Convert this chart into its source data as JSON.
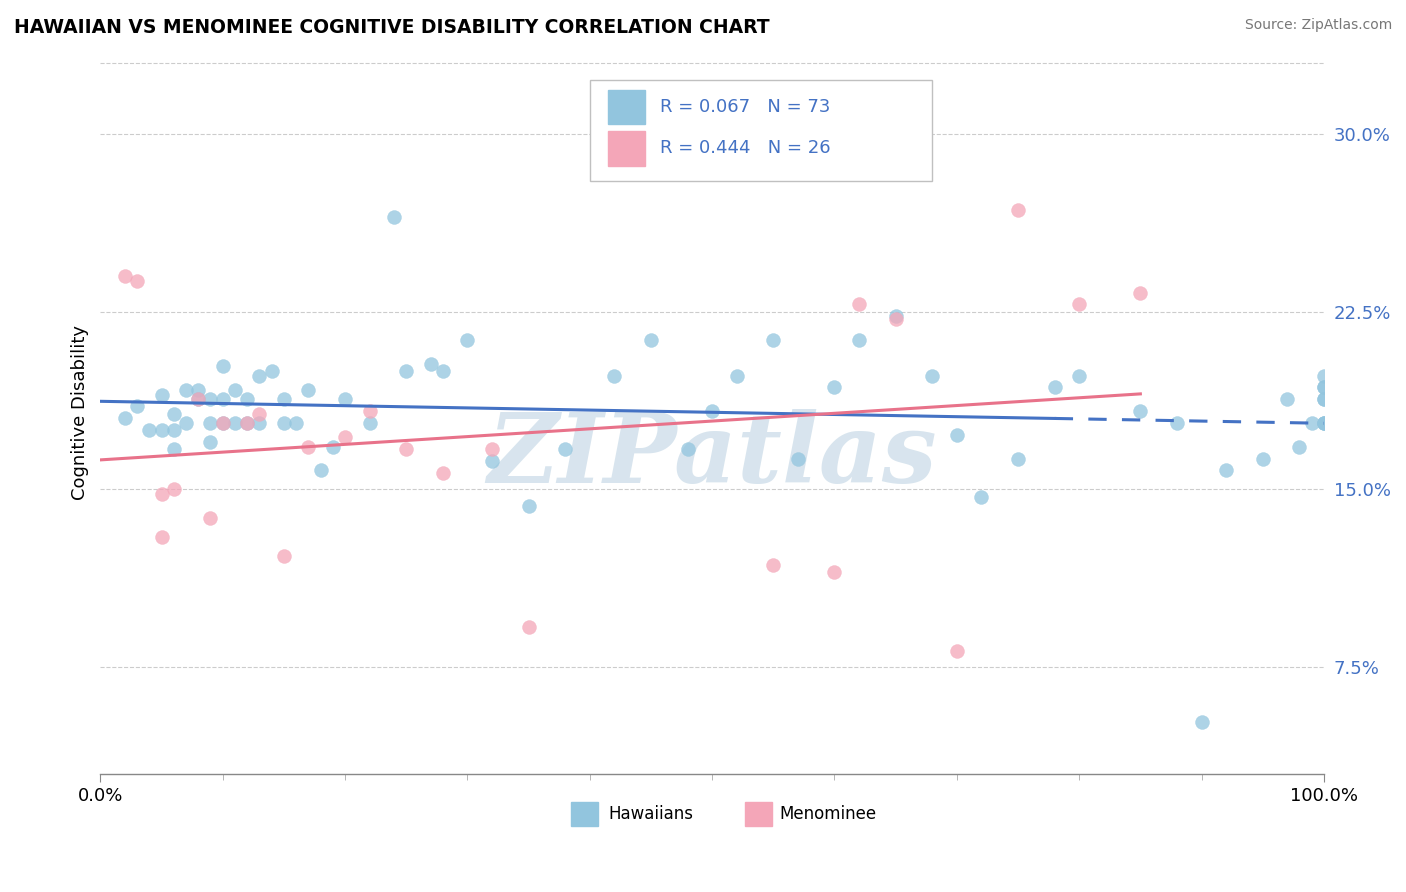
{
  "title": "HAWAIIAN VS MENOMINEE COGNITIVE DISABILITY CORRELATION CHART",
  "source": "Source: ZipAtlas.com",
  "ylabel": "Cognitive Disability",
  "y_ticks": [
    0.075,
    0.15,
    0.225,
    0.3
  ],
  "y_tick_labels": [
    "7.5%",
    "15.0%",
    "22.5%",
    "30.0%"
  ],
  "x_tick_labels": [
    "0.0%",
    "100.0%"
  ],
  "xmin": 0.0,
  "xmax": 1.0,
  "ymin": 0.03,
  "ymax": 0.335,
  "hawaiian_color": "#92c5de",
  "menominee_color": "#f4a6b8",
  "regression_hawaiian_color": "#4472c4",
  "regression_menominee_color": "#e8728a",
  "grid_color": "#cccccc",
  "watermark_color": "#b8cfe0",
  "watermark_text": "ZIPatlas",
  "legend_text_color": "#4472c4",
  "hawaiians_x": [
    0.02,
    0.03,
    0.04,
    0.05,
    0.05,
    0.06,
    0.06,
    0.06,
    0.07,
    0.07,
    0.08,
    0.08,
    0.09,
    0.09,
    0.09,
    0.1,
    0.1,
    0.1,
    0.11,
    0.11,
    0.12,
    0.12,
    0.13,
    0.13,
    0.14,
    0.15,
    0.15,
    0.16,
    0.17,
    0.18,
    0.19,
    0.2,
    0.22,
    0.24,
    0.25,
    0.27,
    0.28,
    0.3,
    0.32,
    0.35,
    0.38,
    0.42,
    0.45,
    0.48,
    0.5,
    0.52,
    0.55,
    0.57,
    0.6,
    0.62,
    0.65,
    0.68,
    0.7,
    0.72,
    0.75,
    0.78,
    0.8,
    0.85,
    0.88,
    0.9,
    0.92,
    0.95,
    0.97,
    0.98,
    0.99,
    1.0,
    1.0,
    1.0,
    1.0,
    1.0,
    1.0,
    1.0,
    1.0
  ],
  "hawaiians_y": [
    0.18,
    0.185,
    0.175,
    0.175,
    0.19,
    0.175,
    0.182,
    0.167,
    0.178,
    0.192,
    0.192,
    0.188,
    0.188,
    0.178,
    0.17,
    0.202,
    0.188,
    0.178,
    0.192,
    0.178,
    0.188,
    0.178,
    0.178,
    0.198,
    0.2,
    0.188,
    0.178,
    0.178,
    0.192,
    0.158,
    0.168,
    0.188,
    0.178,
    0.265,
    0.2,
    0.203,
    0.2,
    0.213,
    0.162,
    0.143,
    0.167,
    0.198,
    0.213,
    0.167,
    0.183,
    0.198,
    0.213,
    0.163,
    0.193,
    0.213,
    0.223,
    0.198,
    0.173,
    0.147,
    0.163,
    0.193,
    0.198,
    0.183,
    0.178,
    0.052,
    0.158,
    0.163,
    0.188,
    0.168,
    0.178,
    0.193,
    0.188,
    0.178,
    0.178,
    0.198,
    0.193,
    0.188,
    0.178
  ],
  "menominee_x": [
    0.02,
    0.03,
    0.05,
    0.06,
    0.08,
    0.09,
    0.1,
    0.13,
    0.15,
    0.17,
    0.2,
    0.22,
    0.25,
    0.28,
    0.32,
    0.35,
    0.55,
    0.62,
    0.65,
    0.7,
    0.75,
    0.8,
    0.85,
    0.05,
    0.12,
    0.6
  ],
  "menominee_y": [
    0.24,
    0.238,
    0.13,
    0.15,
    0.188,
    0.138,
    0.178,
    0.182,
    0.122,
    0.168,
    0.172,
    0.183,
    0.167,
    0.157,
    0.167,
    0.092,
    0.118,
    0.228,
    0.222,
    0.082,
    0.268,
    0.228,
    0.233,
    0.148,
    0.178,
    0.115
  ]
}
